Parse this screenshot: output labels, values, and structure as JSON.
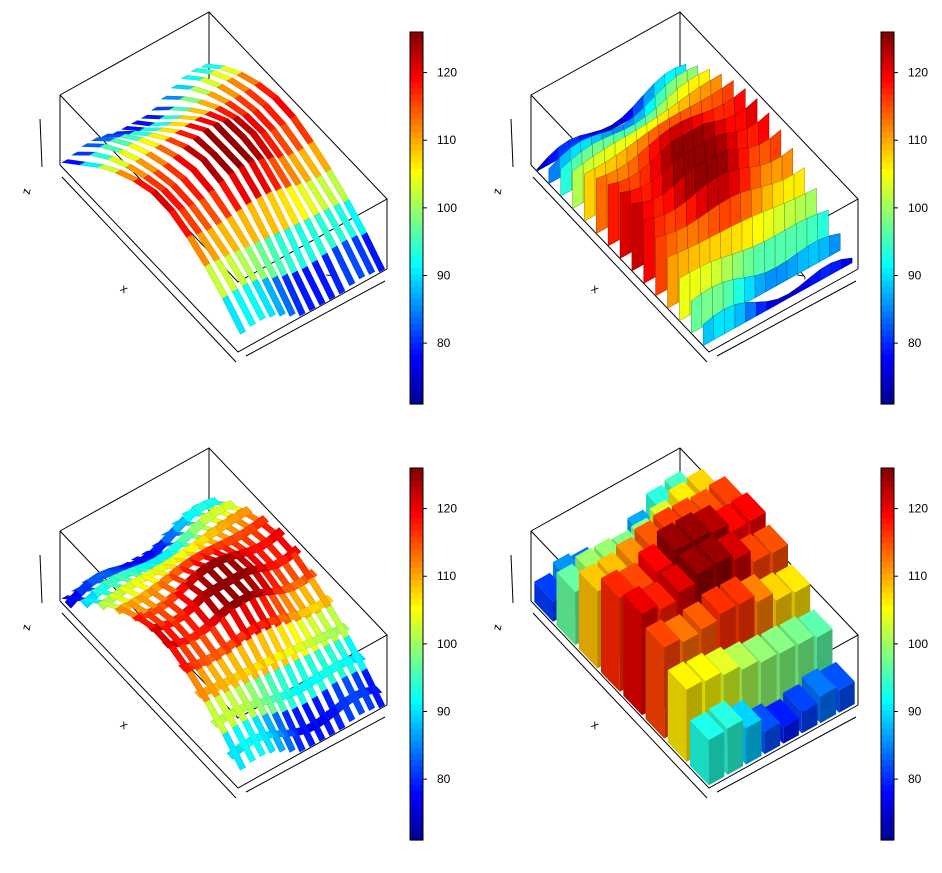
{
  "chart_data": [
    {
      "type": "ribbon3d",
      "variant": "ribbons along x",
      "xlabel": "x",
      "ylabel": "y",
      "zlabel": "z",
      "colorbar": {
        "ticks": [
          80,
          90,
          100,
          110,
          120
        ],
        "range": [
          71,
          126
        ]
      }
    },
    {
      "type": "ribbon3d",
      "variant": "filled curtains along y",
      "xlabel": "x",
      "ylabel": "y",
      "zlabel": "z",
      "colorbar": {
        "ticks": [
          80,
          90,
          100,
          110,
          120
        ],
        "range": [
          71,
          126
        ]
      }
    },
    {
      "type": "ribbon3d",
      "variant": "ribbons in both directions",
      "xlabel": "x",
      "ylabel": "y",
      "zlabel": "z",
      "colorbar": {
        "ticks": [
          80,
          90,
          100,
          110,
          120
        ],
        "range": [
          71,
          126
        ]
      }
    },
    {
      "type": "hist3d",
      "variant": "3D bars",
      "xlabel": "x",
      "ylabel": "y",
      "zlabel": "z",
      "colorbar": {
        "ticks": [
          80,
          90,
          100,
          110,
          120
        ],
        "range": [
          71,
          126
        ]
      }
    }
  ],
  "surface": {
    "grid_x": 11,
    "grid_y": 15,
    "z_min": 71,
    "z_max": 126
  },
  "colormap": [
    "#00008f",
    "#0000ff",
    "#0080ff",
    "#00ffff",
    "#80ff80",
    "#ffff00",
    "#ff8000",
    "#ff0000",
    "#800000"
  ]
}
